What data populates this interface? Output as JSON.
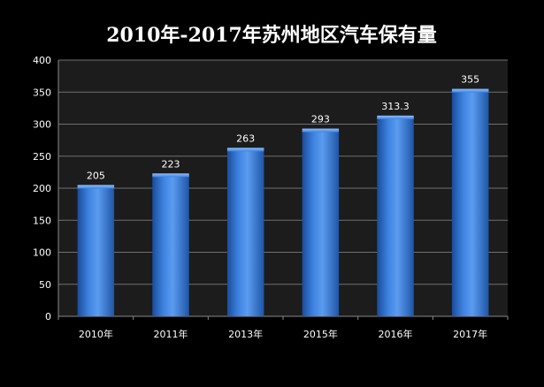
{
  "chart_data": {
    "type": "bar",
    "title": "2010年-2017年苏州地区汽车保有量",
    "categories": [
      "2010年",
      "2011年",
      "2013年",
      "2015年",
      "2016年",
      "2017年"
    ],
    "values": [
      205,
      223,
      263,
      293,
      313.3,
      355
    ],
    "value_labels": [
      "205",
      "223",
      "263",
      "293",
      "313.3",
      "355"
    ],
    "xlabel": "",
    "ylabel": "",
    "ylim": [
      0,
      400
    ],
    "yticks": [
      0,
      50,
      100,
      150,
      200,
      250,
      300,
      350,
      400
    ],
    "grid": true,
    "legend": "none",
    "colors": {
      "background": "#000000",
      "plot_area": "#1c1c1c",
      "grid": "#6f6f6f",
      "bar_light": "#5b9cf0",
      "bar_mid": "#2f6fcc",
      "bar_dark": "#1a4c9a",
      "text": "#ffffff"
    }
  }
}
